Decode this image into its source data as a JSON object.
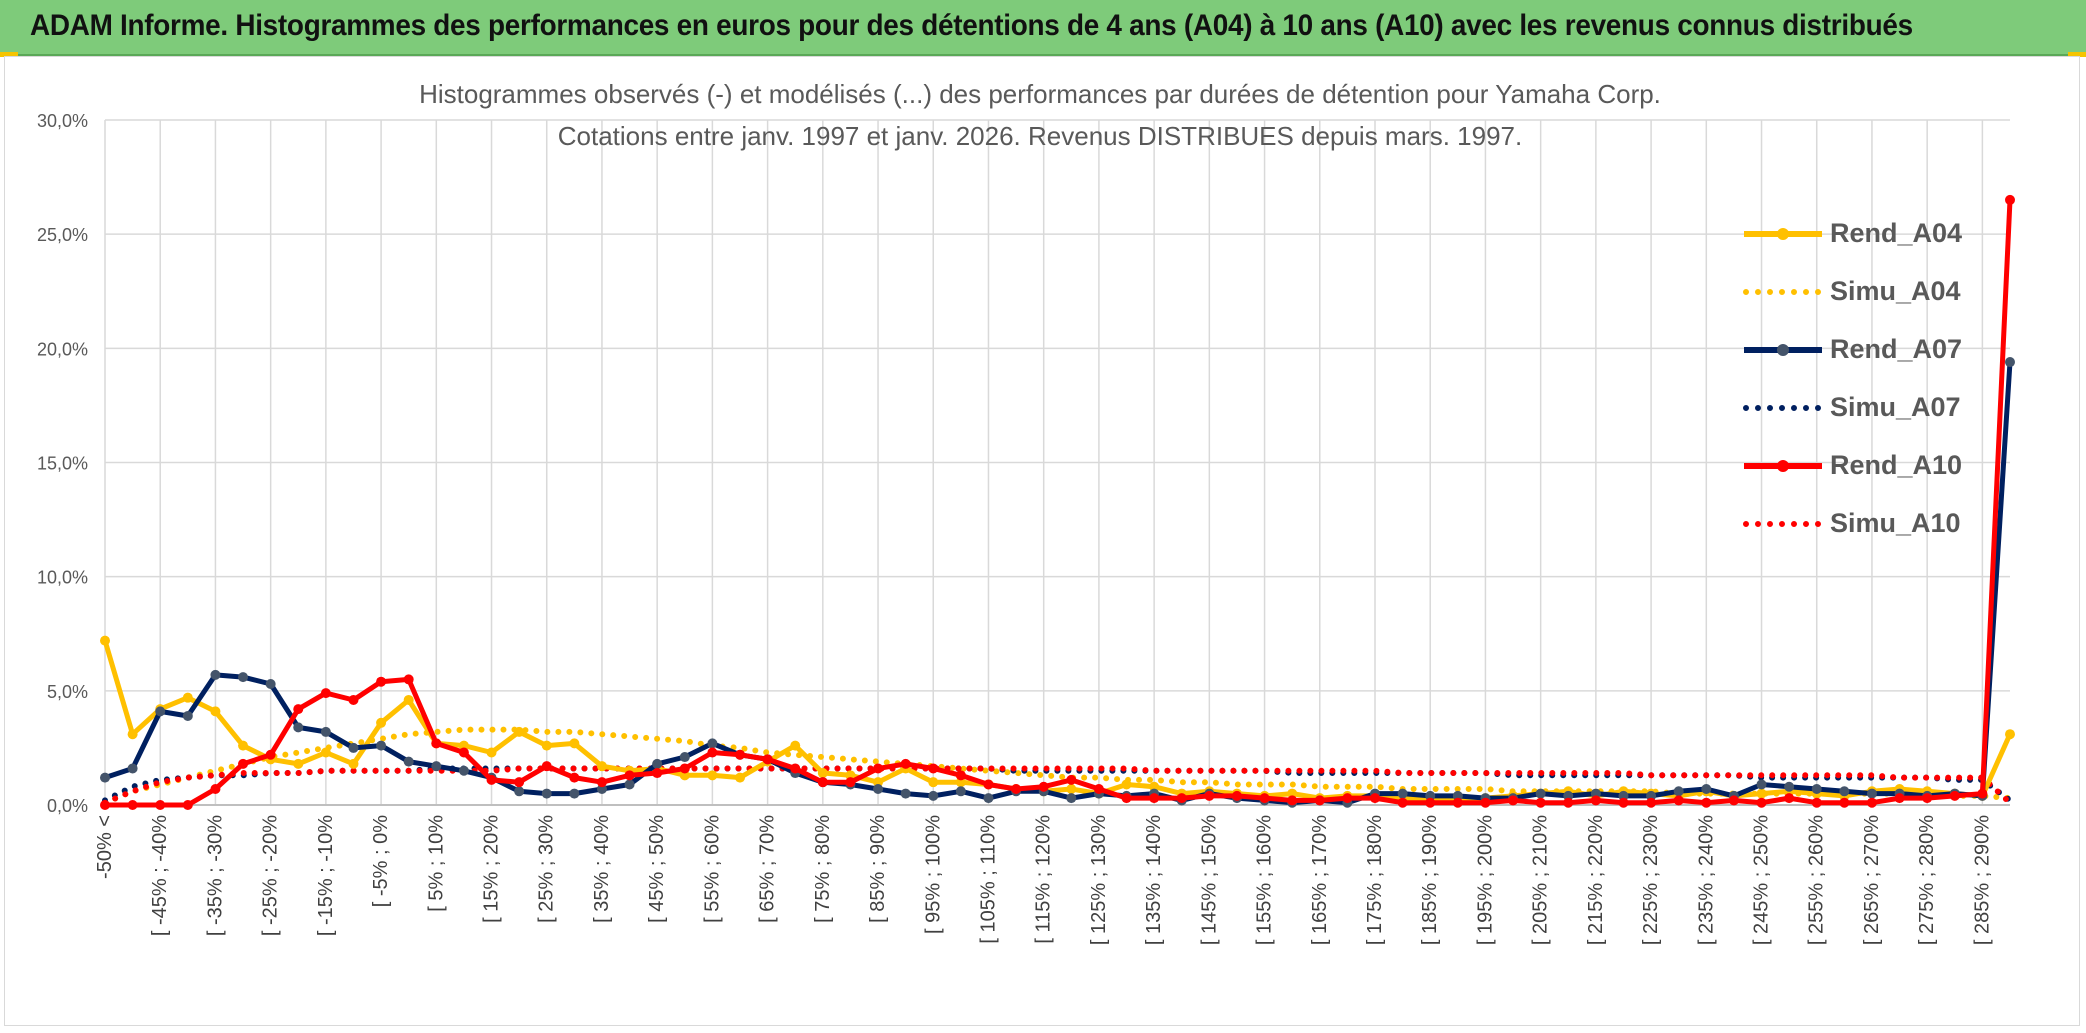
{
  "header": {
    "title": "ADAM Informe. Histogrammes des performances en euros pour des détentions de 4 ans (A04) à 10 ans (A10) avec les revenus connus distribués"
  },
  "colors": {
    "banner": "#7ecb7a",
    "a04": "#ffc000",
    "a07": "#002060",
    "a10": "#ff0000",
    "a07_marker": "#44546a",
    "grid": "#d9d9d9",
    "text": "#595959"
  },
  "chart_data": {
    "type": "line",
    "title": "Histogrammes observés (-) et modélisés (...) des performances par durées de détention pour Yamaha Corp.",
    "subtitle": "Cotations entre janv. 1997 et janv. 2026. Revenus DISTRIBUES depuis mars. 1997.",
    "xlabel": "",
    "ylabel": "",
    "ylim": [
      0,
      30
    ],
    "yticks": [
      "0,0%",
      "5,0%",
      "10,0%",
      "15,0%",
      "20,0%",
      "25,0%",
      "30,0%"
    ],
    "grid": true,
    "legend_position": "right",
    "x_tick_labels": [
      "-50% <",
      "[ -45% ; -40%",
      "[ -35% ; -30%",
      "[ -25% ; -20%",
      "[ -15% ; -10%",
      "[ -5% ; 0%",
      "[ 5% ; 10%",
      "[ 15% ; 20%",
      "[ 25% ; 30%",
      "[ 35% ; 40%",
      "[ 45% ; 50%",
      "[ 55% ; 60%",
      "[ 65% ; 70%",
      "[ 75% ; 80%",
      "[ 85% ; 90%",
      "[ 95% ; 100%",
      "[ 105% ; 110%",
      "[ 115% ; 120%",
      "[ 125% ; 130%",
      "[ 135% ; 140%",
      "[ 145% ; 150%",
      "[ 155% ; 160%",
      "[ 165% ; 170%",
      "[ 175% ; 180%",
      "[ 185% ; 190%",
      "[ 195% ; 200%",
      "[ 205% ; 210%",
      "[ 215% ; 220%",
      "[ 225% ; 230%",
      "[ 235% ; 240%",
      "[ 245% ; 250%",
      "[ 255% ; 260%",
      "[ 265% ; 270%",
      "[ 275% ; 280%",
      "[ 285% ; 290%"
    ],
    "n_points": 70,
    "series": [
      {
        "name": "Rend_A04",
        "style": "solid",
        "color": "#ffc000",
        "marker": "#ffc000",
        "values": [
          7.2,
          3.1,
          4.2,
          4.7,
          4.1,
          2.6,
          2.0,
          1.8,
          2.3,
          1.8,
          3.6,
          4.6,
          2.7,
          2.6,
          2.3,
          3.2,
          2.6,
          2.7,
          1.7,
          1.5,
          1.6,
          1.3,
          1.3,
          1.2,
          1.9,
          2.6,
          1.4,
          1.3,
          1.0,
          1.6,
          1.0,
          1.0,
          0.9,
          0.7,
          0.6,
          0.7,
          0.5,
          0.9,
          0.8,
          0.5,
          0.6,
          0.5,
          0.4,
          0.5,
          0.3,
          0.4,
          0.4,
          0.3,
          0.3,
          0.2,
          0.3,
          0.4,
          0.5,
          0.6,
          0.4,
          0.6,
          0.5,
          0.4,
          0.6,
          0.4,
          0.5,
          0.6,
          0.5,
          0.4,
          0.6,
          0.7,
          0.6,
          0.5,
          0.4,
          3.1
        ]
      },
      {
        "name": "Simu_A04",
        "style": "dotted",
        "color": "#ffc000",
        "values": [
          0.1,
          0.6,
          0.9,
          1.2,
          1.5,
          1.8,
          2.1,
          2.3,
          2.5,
          2.7,
          2.9,
          3.1,
          3.2,
          3.3,
          3.3,
          3.3,
          3.2,
          3.2,
          3.1,
          3.0,
          2.9,
          2.8,
          2.6,
          2.5,
          2.3,
          2.2,
          2.1,
          2.0,
          1.9,
          1.8,
          1.7,
          1.6,
          1.5,
          1.4,
          1.3,
          1.2,
          1.2,
          1.1,
          1.1,
          1.0,
          1.0,
          0.9,
          0.9,
          0.9,
          0.8,
          0.8,
          0.8,
          0.7,
          0.7,
          0.7,
          0.7,
          0.6,
          0.6,
          0.6,
          0.6,
          0.6,
          0.6,
          0.5,
          0.5,
          0.5,
          0.5,
          0.5,
          0.5,
          0.5,
          0.5,
          0.5,
          0.5,
          0.4,
          0.4,
          0.3
        ]
      },
      {
        "name": "Rend_A07",
        "style": "solid",
        "color": "#002060",
        "marker": "#44546a",
        "values": [
          1.2,
          1.6,
          4.1,
          3.9,
          5.7,
          5.6,
          5.3,
          3.4,
          3.2,
          2.5,
          2.6,
          1.9,
          1.7,
          1.5,
          1.2,
          0.6,
          0.5,
          0.5,
          0.7,
          0.9,
          1.8,
          2.1,
          2.7,
          2.2,
          2.0,
          1.4,
          1.0,
          0.9,
          0.7,
          0.5,
          0.4,
          0.6,
          0.3,
          0.6,
          0.6,
          0.3,
          0.5,
          0.4,
          0.5,
          0.2,
          0.5,
          0.3,
          0.2,
          0.1,
          0.2,
          0.1,
          0.5,
          0.5,
          0.4,
          0.4,
          0.3,
          0.3,
          0.5,
          0.4,
          0.5,
          0.4,
          0.4,
          0.6,
          0.7,
          0.4,
          0.9,
          0.8,
          0.7,
          0.6,
          0.5,
          0.5,
          0.4,
          0.5,
          0.4,
          19.4
        ]
      },
      {
        "name": "Simu_A07",
        "style": "dotted",
        "color": "#002060",
        "values": [
          0.2,
          0.8,
          1.1,
          1.2,
          1.3,
          1.3,
          1.4,
          1.4,
          1.5,
          1.5,
          1.5,
          1.5,
          1.6,
          1.6,
          1.6,
          1.6,
          1.6,
          1.6,
          1.6,
          1.6,
          1.6,
          1.6,
          1.6,
          1.6,
          1.6,
          1.6,
          1.6,
          1.6,
          1.6,
          1.6,
          1.6,
          1.6,
          1.6,
          1.5,
          1.5,
          1.5,
          1.5,
          1.5,
          1.5,
          1.5,
          1.5,
          1.5,
          1.5,
          1.4,
          1.4,
          1.4,
          1.4,
          1.4,
          1.4,
          1.4,
          1.4,
          1.3,
          1.3,
          1.3,
          1.3,
          1.3,
          1.3,
          1.3,
          1.3,
          1.3,
          1.2,
          1.2,
          1.2,
          1.2,
          1.2,
          1.2,
          1.2,
          1.1,
          1.1,
          0.2
        ]
      },
      {
        "name": "Rend_A10",
        "style": "solid",
        "color": "#ff0000",
        "marker": "#ff0000",
        "values": [
          0.0,
          0.0,
          0.0,
          0.0,
          0.7,
          1.8,
          2.2,
          4.2,
          4.9,
          4.6,
          5.4,
          5.5,
          2.7,
          2.3,
          1.1,
          1.0,
          1.7,
          1.2,
          1.0,
          1.3,
          1.4,
          1.6,
          2.3,
          2.2,
          2.0,
          1.6,
          1.0,
          1.0,
          1.6,
          1.8,
          1.6,
          1.3,
          0.9,
          0.7,
          0.8,
          1.1,
          0.7,
          0.3,
          0.3,
          0.3,
          0.4,
          0.4,
          0.3,
          0.2,
          0.2,
          0.3,
          0.3,
          0.1,
          0.1,
          0.1,
          0.1,
          0.2,
          0.1,
          0.1,
          0.2,
          0.1,
          0.1,
          0.2,
          0.1,
          0.2,
          0.1,
          0.3,
          0.1,
          0.1,
          0.1,
          0.3,
          0.3,
          0.4,
          0.5,
          26.5
        ]
      },
      {
        "name": "Simu_A10",
        "style": "dotted",
        "color": "#ff0000",
        "values": [
          0.1,
          0.6,
          1.0,
          1.2,
          1.3,
          1.4,
          1.4,
          1.4,
          1.5,
          1.5,
          1.5,
          1.5,
          1.5,
          1.5,
          1.5,
          1.6,
          1.6,
          1.6,
          1.6,
          1.6,
          1.6,
          1.6,
          1.6,
          1.6,
          1.6,
          1.6,
          1.6,
          1.6,
          1.6,
          1.6,
          1.6,
          1.6,
          1.6,
          1.6,
          1.6,
          1.6,
          1.6,
          1.6,
          1.5,
          1.5,
          1.5,
          1.5,
          1.5,
          1.5,
          1.5,
          1.5,
          1.5,
          1.4,
          1.4,
          1.4,
          1.4,
          1.4,
          1.4,
          1.4,
          1.4,
          1.4,
          1.3,
          1.3,
          1.3,
          1.3,
          1.3,
          1.3,
          1.3,
          1.3,
          1.3,
          1.2,
          1.2,
          1.2,
          1.2,
          0.1
        ]
      }
    ]
  }
}
